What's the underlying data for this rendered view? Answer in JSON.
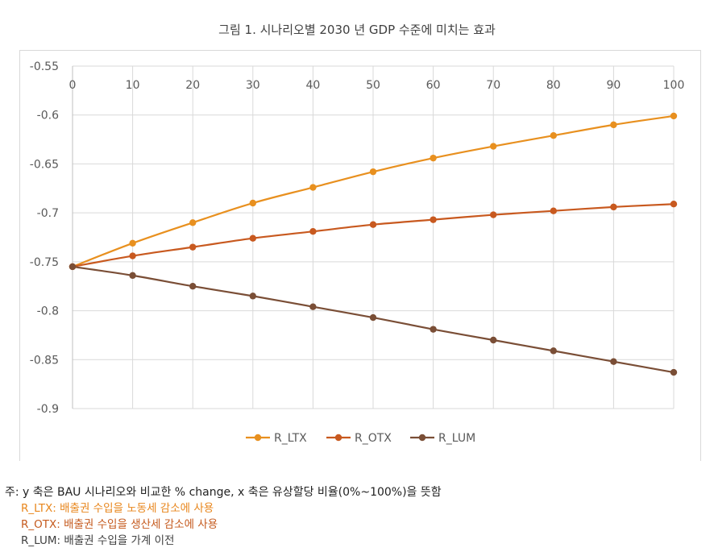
{
  "chart_data": {
    "type": "line",
    "title": "그림 1. 시나리오별 2030 년 GDP 수준에 미치는 효과",
    "xlabel": "",
    "ylabel": "",
    "x": [
      0,
      10,
      20,
      30,
      40,
      50,
      60,
      70,
      80,
      90,
      100
    ],
    "ylim": [
      -0.9,
      -0.55
    ],
    "yticks": [
      "-0.55",
      "-0.6",
      "-0.65",
      "-0.7",
      "-0.75",
      "-0.8",
      "-0.85",
      "-0.9"
    ],
    "grid": true,
    "legend": "bottom",
    "series": [
      {
        "name": "R_LTX",
        "color": "#e8901f",
        "values": [
          -0.755,
          -0.731,
          -0.71,
          -0.69,
          -0.674,
          -0.658,
          -0.644,
          -0.632,
          -0.621,
          -0.61,
          -0.601
        ]
      },
      {
        "name": "R_OTX",
        "color": "#c8591f",
        "values": [
          -0.755,
          -0.744,
          -0.735,
          -0.726,
          -0.719,
          -0.712,
          -0.707,
          -0.702,
          -0.698,
          -0.694,
          -0.691
        ]
      },
      {
        "name": "R_LUM",
        "color": "#7a4e36",
        "values": [
          -0.755,
          -0.764,
          -0.775,
          -0.785,
          -0.796,
          -0.807,
          -0.819,
          -0.83,
          -0.841,
          -0.852,
          -0.863
        ]
      }
    ]
  },
  "notes": {
    "main": "주: y 축은 BAU 시나리오와 비교한 % change, x 축은 유상할당 비율(0%~100%)을 뜻함",
    "ltx": "R_LTX: 배출권 수입을 노동세 감소에 사용",
    "otx": "R_OTX: 배출권 수입을 생산세 감소에 사용",
    "lum": "R_LUM: 배출권 수입을 가계 이전"
  }
}
